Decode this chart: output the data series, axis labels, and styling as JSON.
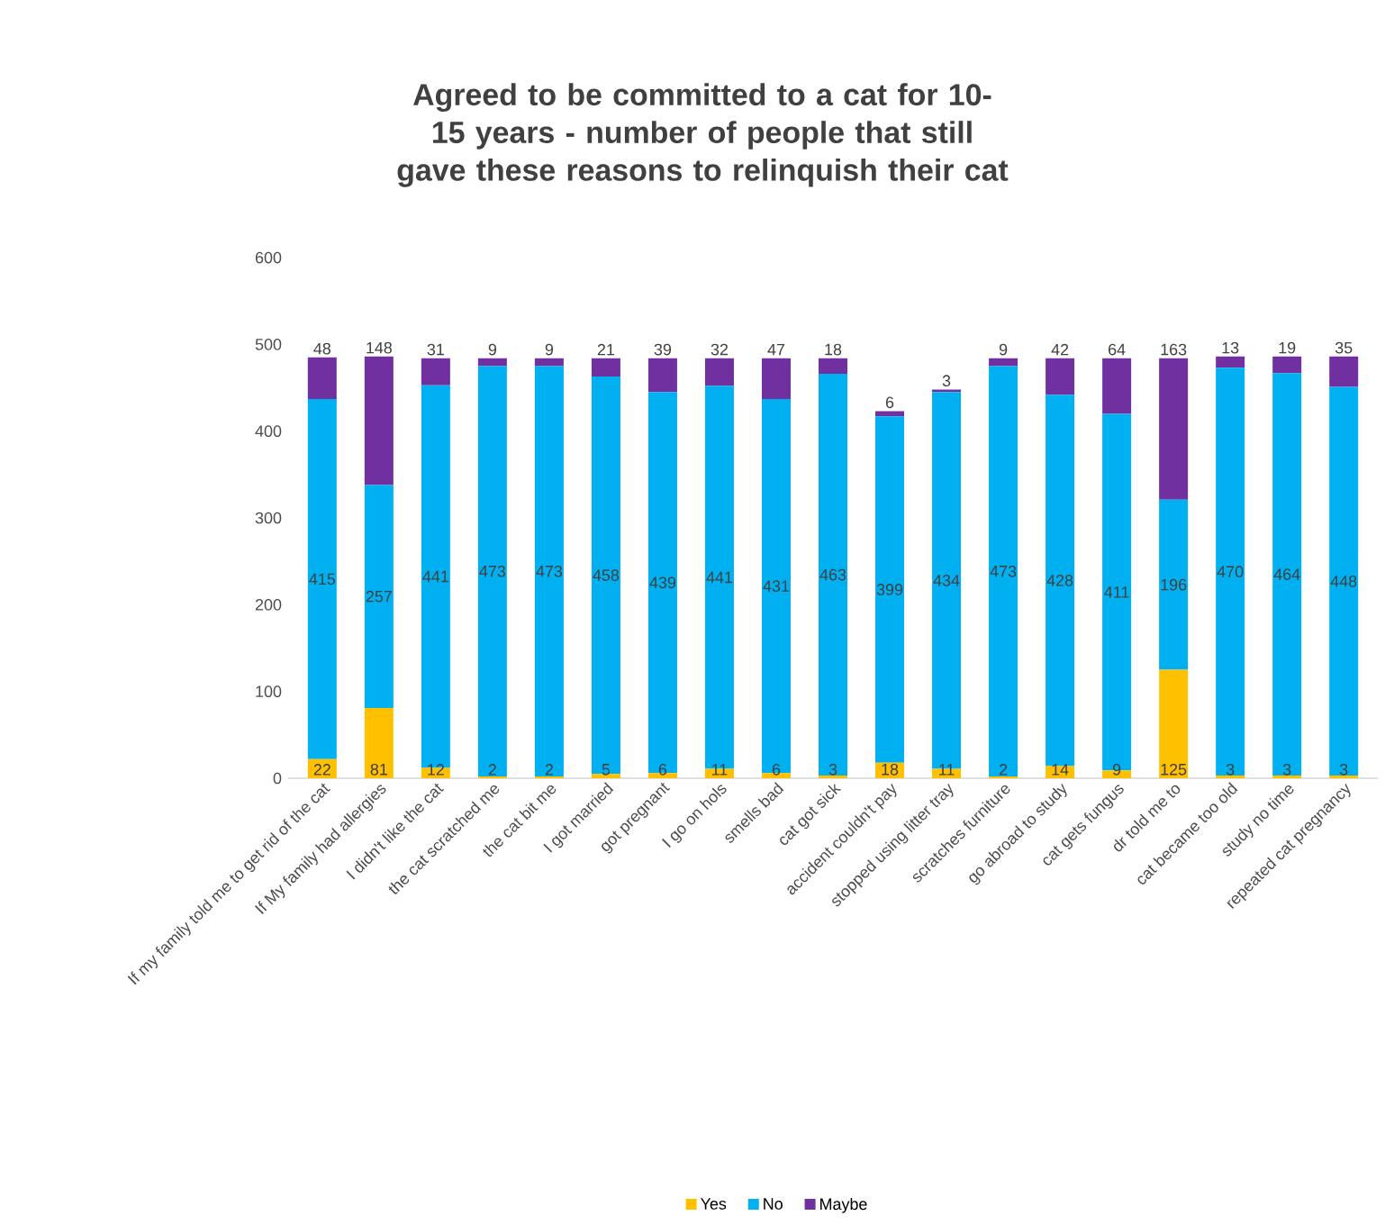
{
  "chart_data": {
    "type": "bar",
    "stacked": true,
    "title": "Agreed to be committed to a cat for 10-15 years - number of people that still gave these reasons to relinquish their cat",
    "categories": [
      "If my family told me to get rid of the cat",
      "If My family had allergies",
      "I didn't like the cat",
      "the cat scratched me",
      "the cat bit me",
      "I got married",
      "got pregnant",
      "I go on hols",
      "smells bad",
      "cat got sick",
      "accident couldn't pay",
      "stopped using litter tray",
      "scratches furniture",
      "go abroad to study",
      "cat gets fungus",
      "dr told me to",
      "cat became too old",
      "study no time",
      "repeated cat pregnancy"
    ],
    "series": [
      {
        "name": "Yes",
        "color": "#ffc000",
        "values": [
          22,
          81,
          12,
          2,
          2,
          5,
          6,
          11,
          6,
          3,
          18,
          11,
          2,
          14,
          9,
          125,
          3,
          3,
          3
        ]
      },
      {
        "name": "No",
        "color": "#00b0f0",
        "values": [
          415,
          257,
          441,
          473,
          473,
          458,
          439,
          441,
          431,
          463,
          399,
          434,
          473,
          428,
          411,
          196,
          470,
          464,
          448
        ]
      },
      {
        "name": "Maybe",
        "color": "#7030a0",
        "values": [
          48,
          148,
          31,
          9,
          9,
          21,
          39,
          32,
          47,
          18,
          6,
          3,
          9,
          42,
          64,
          163,
          13,
          19,
          35
        ]
      }
    ],
    "ylim": [
      0,
      600
    ],
    "yticks": [
      0,
      100,
      200,
      300,
      400,
      500,
      600
    ],
    "data_labels": true,
    "legend": "bottom",
    "grid": false
  }
}
